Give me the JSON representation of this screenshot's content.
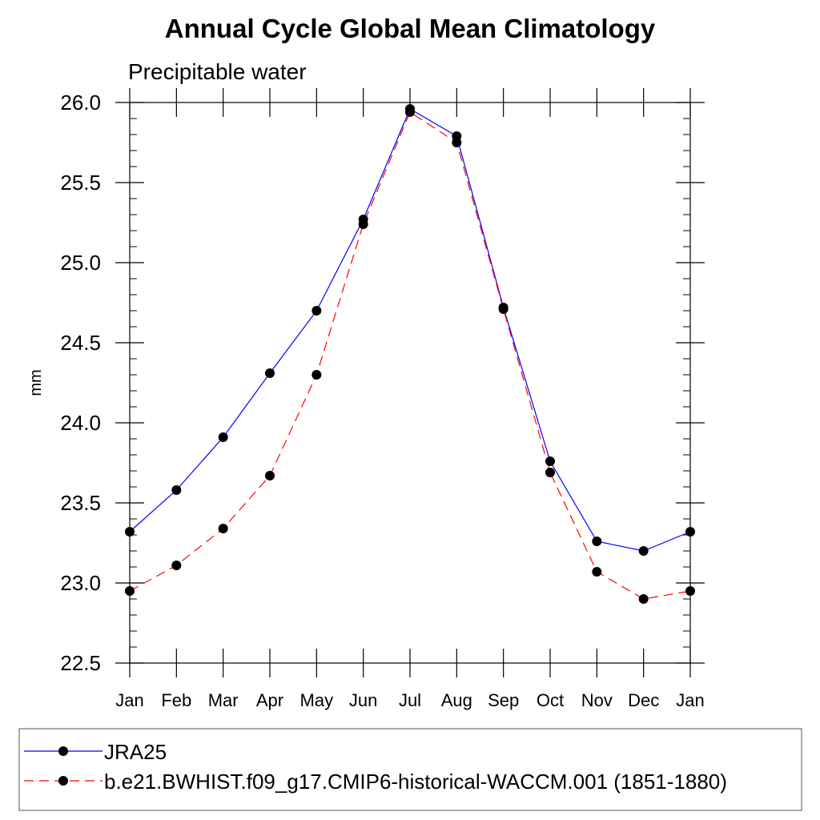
{
  "chart_data": {
    "type": "line",
    "title": "Annual Cycle Global Mean Climatology",
    "subtitle": "Precipitable water",
    "ylabel": "mm",
    "xlabel": "",
    "categories": [
      "Jan",
      "Feb",
      "Mar",
      "Apr",
      "May",
      "Jun",
      "Jul",
      "Aug",
      "Sep",
      "Oct",
      "Nov",
      "Dec",
      "Jan"
    ],
    "ylim": [
      22.5,
      26.0
    ],
    "yticks": [
      "22.5",
      "23.0",
      "23.5",
      "24.0",
      "24.5",
      "25.0",
      "25.5",
      "26.0"
    ],
    "series": [
      {
        "name": "JRA25",
        "color": "#0000ff",
        "dash": "solid",
        "values": [
          23.32,
          23.58,
          23.91,
          24.31,
          24.7,
          25.27,
          25.96,
          25.79,
          24.72,
          23.76,
          23.26,
          23.2,
          23.32
        ]
      },
      {
        "name": "b.e21.BWHIST.f09_g17.CMIP6-historical-WACCM.001 (1851-1880)",
        "color": "#ff0000",
        "dash": "dashed",
        "values": [
          22.95,
          23.11,
          23.34,
          23.67,
          24.3,
          25.24,
          25.94,
          25.75,
          24.71,
          23.69,
          23.07,
          22.9,
          22.95
        ]
      }
    ],
    "grid": false,
    "legend_position": "bottom"
  }
}
